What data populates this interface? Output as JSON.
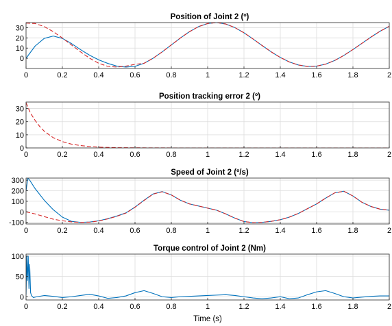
{
  "figure": {
    "xlabel": "Time (s)"
  },
  "chart_data": [
    {
      "type": "line",
      "title": "Position of Joint 2 (º)",
      "xlim": [
        0,
        2
      ],
      "ylim": [
        -10,
        35
      ],
      "xticks": [
        0,
        0.2,
        0.4,
        0.6,
        0.8,
        1,
        1.2,
        1.4,
        1.6,
        1.8,
        2
      ],
      "xtick_labels": [
        "0",
        "0.2",
        "0.4",
        "0.6",
        "0.8",
        "1",
        "1.2",
        "1.4",
        "1.6",
        "1.8",
        "2"
      ],
      "yticks": [
        0,
        10,
        20,
        30
      ],
      "ytick_labels": [
        "0",
        "10",
        "20",
        "30"
      ],
      "grid": true,
      "series": [
        {
          "color": "#0072BD",
          "style": "solid",
          "x": [
            0,
            0.05,
            0.1,
            0.15,
            0.2,
            0.25,
            0.3,
            0.35,
            0.4,
            0.45,
            0.5,
            0.55,
            0.6,
            0.65,
            0.7,
            0.75,
            0.8,
            0.85,
            0.9,
            0.95,
            1.0,
            1.05,
            1.1,
            1.15,
            1.2,
            1.25,
            1.3,
            1.35,
            1.4,
            1.45,
            1.5,
            1.55,
            1.6,
            1.65,
            1.7,
            1.75,
            1.8,
            1.85,
            1.9,
            1.95,
            2.0
          ],
          "y": [
            0,
            12,
            19.5,
            21.8,
            19.5,
            14.5,
            8.5,
            3,
            -1.5,
            -5,
            -7.7,
            -8.6,
            -7.9,
            -4.9,
            0.1,
            6.3,
            13.1,
            19.9,
            26.1,
            31.1,
            34.1,
            35,
            33.6,
            30.1,
            25,
            18.9,
            12.5,
            6.3,
            0.8,
            -3.6,
            -6.6,
            -8,
            -7.7,
            -5.7,
            -2.1,
            2.8,
            8.6,
            14.7,
            20.9,
            26.6,
            31.4
          ]
        },
        {
          "color": "#D62728",
          "style": "dashed",
          "x": [
            0,
            0.05,
            0.1,
            0.15,
            0.2,
            0.25,
            0.3,
            0.35,
            0.4,
            0.45,
            0.5,
            0.55,
            0.6,
            0.65,
            0.7,
            0.75,
            0.8,
            0.85,
            0.9,
            0.95,
            1.0,
            1.05,
            1.1,
            1.15,
            1.2,
            1.25,
            1.3,
            1.35,
            1.4,
            1.45,
            1.5,
            1.55,
            1.6,
            1.65,
            1.7,
            1.75,
            1.8,
            1.85,
            1.9,
            1.95,
            2.0
          ],
          "y": [
            34.5,
            34.1,
            31.1,
            26.1,
            19.9,
            13.1,
            6.3,
            0.1,
            -4.9,
            -7.9,
            -8.6,
            -7.7,
            -5.9,
            -4.9,
            0.1,
            6.3,
            13.1,
            19.9,
            26.1,
            31.1,
            34.1,
            35,
            33.6,
            30.1,
            25,
            18.9,
            12.5,
            6.3,
            0.8,
            -3.6,
            -6.6,
            -8,
            -7.7,
            -5.7,
            -2.1,
            2.8,
            8.6,
            14.7,
            20.9,
            26.6,
            31.4
          ]
        }
      ]
    },
    {
      "type": "line",
      "title": "Position tracking error 2 (º)",
      "xlim": [
        0,
        2
      ],
      "ylim": [
        0,
        35
      ],
      "xticks": [
        0,
        0.2,
        0.4,
        0.6,
        0.8,
        1,
        1.2,
        1.4,
        1.6,
        1.8,
        2
      ],
      "xtick_labels": [
        "0",
        "0.2",
        "0.4",
        "0.6",
        "0.8",
        "1",
        "1.2",
        "1.4",
        "1.6",
        "1.8",
        "2"
      ],
      "yticks": [
        0,
        10,
        20,
        30
      ],
      "ytick_labels": [
        "0",
        "10",
        "20",
        "30"
      ],
      "grid": true,
      "series": [
        {
          "color": "#D62728",
          "style": "dashed",
          "x": [
            0,
            0.025,
            0.05,
            0.075,
            0.1,
            0.15,
            0.2,
            0.25,
            0.3,
            0.35,
            0.4,
            0.5,
            0.6,
            0.8,
            1.0,
            1.5,
            2.0
          ],
          "y": [
            34.5,
            26.4,
            21,
            16.4,
            12.8,
            7.8,
            4.8,
            2.9,
            1.8,
            1.1,
            0.6,
            0.2,
            0.1,
            0,
            0,
            0,
            0
          ]
        }
      ]
    },
    {
      "type": "line",
      "title": "Speed of Joint 2 (º/s)",
      "xlim": [
        0,
        2
      ],
      "ylim": [
        -115,
        320
      ],
      "xticks": [
        0,
        0.2,
        0.4,
        0.6,
        0.8,
        1,
        1.2,
        1.4,
        1.6,
        1.8,
        2
      ],
      "xtick_labels": [
        "0",
        "0.2",
        "0.4",
        "0.6",
        "0.8",
        "1",
        "1.2",
        "1.4",
        "1.6",
        "1.8",
        "2"
      ],
      "yticks": [
        -100,
        0,
        100,
        200,
        300
      ],
      "ytick_labels": [
        "-100",
        "0",
        "100",
        "200",
        "300"
      ],
      "grid": true,
      "series": [
        {
          "color": "#0072BD",
          "style": "solid",
          "x": [
            0,
            0.01,
            0.02,
            0.05,
            0.1,
            0.15,
            0.2,
            0.25,
            0.3,
            0.35,
            0.4,
            0.45,
            0.5,
            0.55,
            0.6,
            0.65,
            0.7,
            0.75,
            0.8,
            0.85,
            0.9,
            0.95,
            1.0,
            1.05,
            1.1,
            1.15,
            1.2,
            1.25,
            1.3,
            1.35,
            1.4,
            1.45,
            1.5,
            1.55,
            1.6,
            1.65,
            1.7,
            1.75,
            1.8,
            1.85,
            1.9,
            1.95,
            2.0
          ],
          "y": [
            200,
            320,
            300,
            220,
            110,
            20,
            -50,
            -90,
            -100,
            -97,
            -85,
            -65,
            -40,
            -10,
            45,
            110,
            170,
            192,
            160,
            110,
            75,
            55,
            35,
            15,
            -20,
            -60,
            -92,
            -103,
            -100,
            -90,
            -75,
            -50,
            -15,
            30,
            75,
            130,
            180,
            195,
            150,
            90,
            50,
            25,
            15
          ]
        },
        {
          "color": "#D62728",
          "style": "dashed",
          "x": [
            0,
            0.05,
            0.1,
            0.15,
            0.2,
            0.25,
            0.3,
            0.35,
            0.4,
            0.45,
            0.5,
            0.55,
            0.6,
            0.65,
            0.7,
            0.75,
            0.8,
            0.85,
            0.9,
            0.95,
            1.0,
            1.05,
            1.1,
            1.15,
            1.2,
            1.25,
            1.3,
            1.35,
            1.4,
            1.45,
            1.5,
            1.55,
            1.6,
            1.65,
            1.7,
            1.75,
            1.8,
            1.85,
            1.9,
            1.95,
            2.0
          ],
          "y": [
            0,
            -20,
            -45,
            -70,
            -85,
            -95,
            -100,
            -98,
            -87,
            -67,
            -42,
            -12,
            43,
            108,
            168,
            190,
            160,
            110,
            75,
            55,
            35,
            15,
            -20,
            -60,
            -92,
            -103,
            -100,
            -90,
            -75,
            -50,
            -15,
            30,
            75,
            130,
            180,
            195,
            150,
            90,
            50,
            25,
            15
          ]
        }
      ]
    },
    {
      "type": "line",
      "title": "Torque control of Joint 2 (Nm)",
      "xlim": [
        0,
        2
      ],
      "ylim": [
        -8,
        105
      ],
      "xticks": [
        0,
        0.2,
        0.4,
        0.6,
        0.8,
        1,
        1.2,
        1.4,
        1.6,
        1.8,
        2
      ],
      "xtick_labels": [
        "0",
        "0.2",
        "0.4",
        "0.6",
        "0.8",
        "1",
        "1.2",
        "1.4",
        "1.6",
        "1.8",
        "2"
      ],
      "yticks": [
        0,
        50,
        100
      ],
      "ytick_labels": [
        "0",
        "50",
        "100"
      ],
      "grid": true,
      "series": [
        {
          "color": "#0072BD",
          "style": "solid",
          "x": [
            0,
            0.004,
            0.008,
            0.012,
            0.016,
            0.02,
            0.025,
            0.03,
            0.04,
            0.06,
            0.1,
            0.15,
            0.2,
            0.25,
            0.3,
            0.35,
            0.4,
            0.45,
            0.5,
            0.55,
            0.6,
            0.65,
            0.7,
            0.75,
            0.8,
            0.85,
            0.9,
            0.95,
            1.0,
            1.05,
            1.1,
            1.15,
            1.2,
            1.25,
            1.3,
            1.35,
            1.4,
            1.45,
            1.5,
            1.55,
            1.6,
            1.65,
            1.7,
            1.75,
            1.8,
            1.85,
            1.9,
            1.95,
            2.0
          ],
          "y": [
            5,
            100,
            40,
            100,
            20,
            80,
            10,
            3,
            -2,
            0,
            3,
            1,
            -2,
            0,
            3,
            6,
            2,
            -4,
            -2,
            2,
            10,
            15,
            8,
            0,
            -2,
            0,
            1,
            2,
            3,
            4,
            5,
            3,
            0,
            -3,
            -5,
            -3,
            0,
            -5,
            -3,
            5,
            12,
            15,
            8,
            0,
            -3,
            -1,
            1,
            2,
            2
          ]
        }
      ]
    }
  ]
}
